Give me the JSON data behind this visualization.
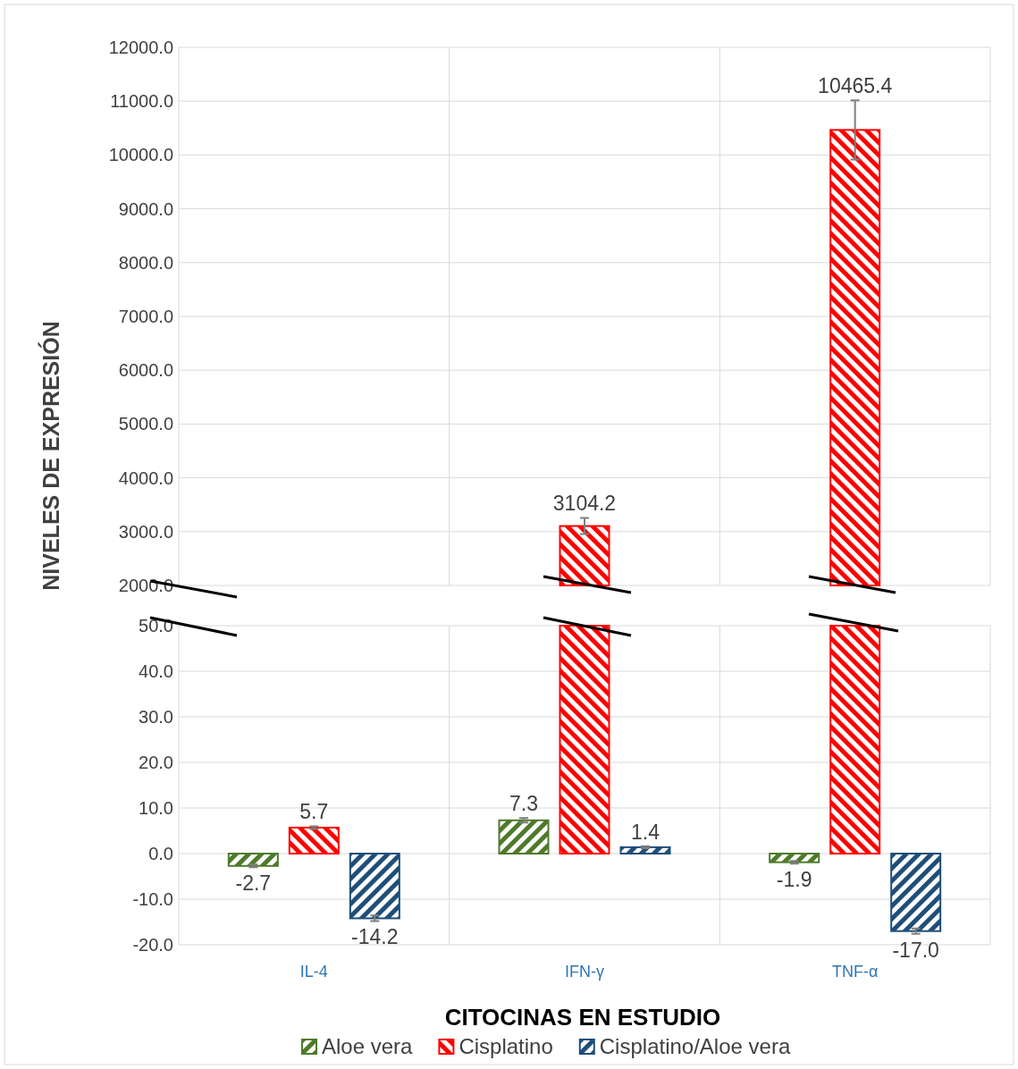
{
  "chart_data": [
    {
      "type": "bar",
      "ylabel": "NIVELES DE EXPRESIÓN",
      "categories": [
        null,
        null,
        null
      ],
      "ylim": [
        2000,
        12000
      ],
      "yticks": [
        {
          "value": 2000,
          "label": "2000.0"
        },
        {
          "value": 3000,
          "label": "3000.0"
        },
        {
          "value": 4000,
          "label": "4000.0"
        },
        {
          "value": 5000,
          "label": "5000.0"
        },
        {
          "value": 6000,
          "label": "6000.0"
        },
        {
          "value": 7000,
          "label": "7000.0"
        },
        {
          "value": 8000,
          "label": "8000.0"
        },
        {
          "value": 9000,
          "label": "9000.0"
        },
        {
          "value": 10000,
          "label": "10000.0"
        },
        {
          "value": 11000,
          "label": "11000.0"
        },
        {
          "value": 12000,
          "label": "12000.0"
        }
      ],
      "grid": true,
      "legend": false,
      "tick_labels": "y",
      "series": [
        {
          "color": "#ff0000",
          "values": [
            null,
            3104.2,
            10465.4
          ],
          "errors": [
            null,
            150,
            550
          ],
          "value_labels": [
            null,
            "3104.2",
            "10465.4"
          ]
        }
      ]
    },
    {
      "type": "bar",
      "xlabel": "CITOCINAS EN ESTUDIO",
      "categories": [
        "IL-4",
        "IFN-γ",
        "TNF-α"
      ],
      "ylim": [
        -20,
        50
      ],
      "yticks": [
        {
          "value": -20,
          "label": "-20.0"
        },
        {
          "value": -10,
          "label": "-10.0"
        },
        {
          "value": 0,
          "label": "0.0"
        },
        {
          "value": 10,
          "label": "10.0"
        },
        {
          "value": 20,
          "label": "20.0"
        },
        {
          "value": 30,
          "label": "30.0"
        },
        {
          "value": 40,
          "label": "40.0"
        },
        {
          "value": 50,
          "label": "50.0"
        }
      ],
      "grid": true,
      "legend": "bottom",
      "series": [
        {
          "name": "Aloe vera",
          "color": "#4e7a2a",
          "values": [
            -2.7,
            7.3,
            -1.9
          ],
          "errors": [
            0.3,
            0.5,
            0.3
          ],
          "value_labels": [
            "-2.7",
            "7.3",
            "-1.9"
          ]
        },
        {
          "name": "Cisplatino",
          "color": "#ff0000",
          "values": [
            5.7,
            50,
            50
          ],
          "errors": [
            0.3,
            null,
            null
          ],
          "value_labels": [
            "5.7",
            null,
            null
          ]
        },
        {
          "name": "Cisplatino/Aloe vera",
          "color": "#1f4e79",
          "values": [
            -14.2,
            1.4,
            -17.0
          ],
          "errors": [
            0.6,
            0.2,
            0.6
          ],
          "value_labels": [
            "-14.2",
            "1.4",
            "-17.0"
          ]
        }
      ]
    }
  ]
}
